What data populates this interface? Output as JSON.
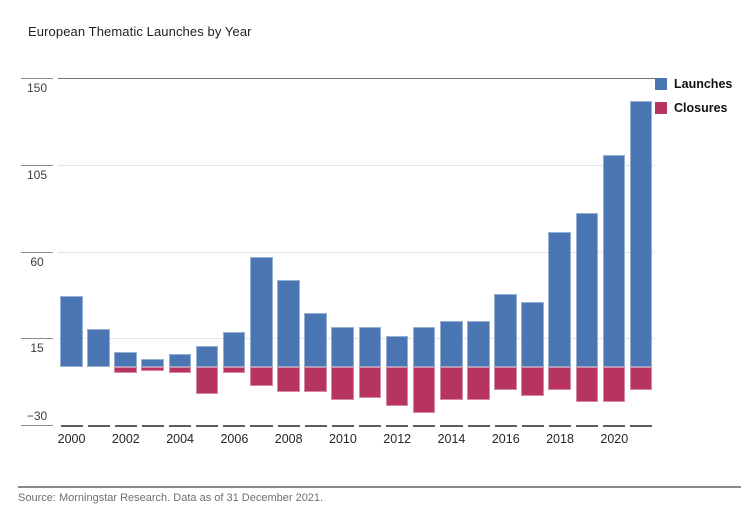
{
  "title": "European Thematic Launches by Year",
  "source": "Source: Morningstar Research. Data as of 31 December 2021.",
  "colors": {
    "launches": "#4A76B4",
    "closures": "#B73460",
    "grid_light": "#e3e3e3",
    "grid_top": "#757575",
    "axis_dash": "#5c5c5c"
  },
  "legend": [
    {
      "label": "Launches",
      "color": "#4A76B4"
    },
    {
      "label": "Closures",
      "color": "#B73460"
    }
  ],
  "chart_data": {
    "type": "bar",
    "title": "European Thematic Launches by Year",
    "categories": [
      "2000",
      "2001",
      "2002",
      "2003",
      "2004",
      "2005",
      "2006",
      "2007",
      "2008",
      "2009",
      "2010",
      "2011",
      "2012",
      "2013",
      "2014",
      "2015",
      "2016",
      "2017",
      "2018",
      "2019",
      "2020",
      "2021"
    ],
    "series": [
      {
        "name": "Launches",
        "color": "#4A76B4",
        "values": [
          37,
          20,
          8,
          4,
          7,
          11,
          18,
          57,
          45,
          28,
          21,
          21,
          16,
          21,
          24,
          24,
          38,
          34,
          70,
          80,
          110,
          138
        ]
      },
      {
        "name": "Closures",
        "color": "#B73460",
        "values": [
          0,
          0,
          -3,
          -2,
          -3,
          -14,
          -3,
          -10,
          -13,
          -13,
          -17,
          -16,
          -20,
          -24,
          -17,
          -17,
          -12,
          -15,
          -12,
          -18,
          -18,
          -12
        ]
      }
    ],
    "x_tick_labels": [
      "2000",
      "2002",
      "2004",
      "2006",
      "2008",
      "2010",
      "2012",
      "2014",
      "2016",
      "2018",
      "2020"
    ],
    "y_ticks": [
      {
        "v": 150,
        "label": "150"
      },
      {
        "v": 105,
        "label": "105"
      },
      {
        "v": 60,
        "label": "60"
      },
      {
        "v": 15,
        "label": "15"
      },
      {
        "v": -30,
        "label": "−30"
      }
    ],
    "ylim": [
      -30,
      150
    ],
    "grid": true,
    "legend_position": "top-right",
    "xlabel": "",
    "ylabel": ""
  }
}
